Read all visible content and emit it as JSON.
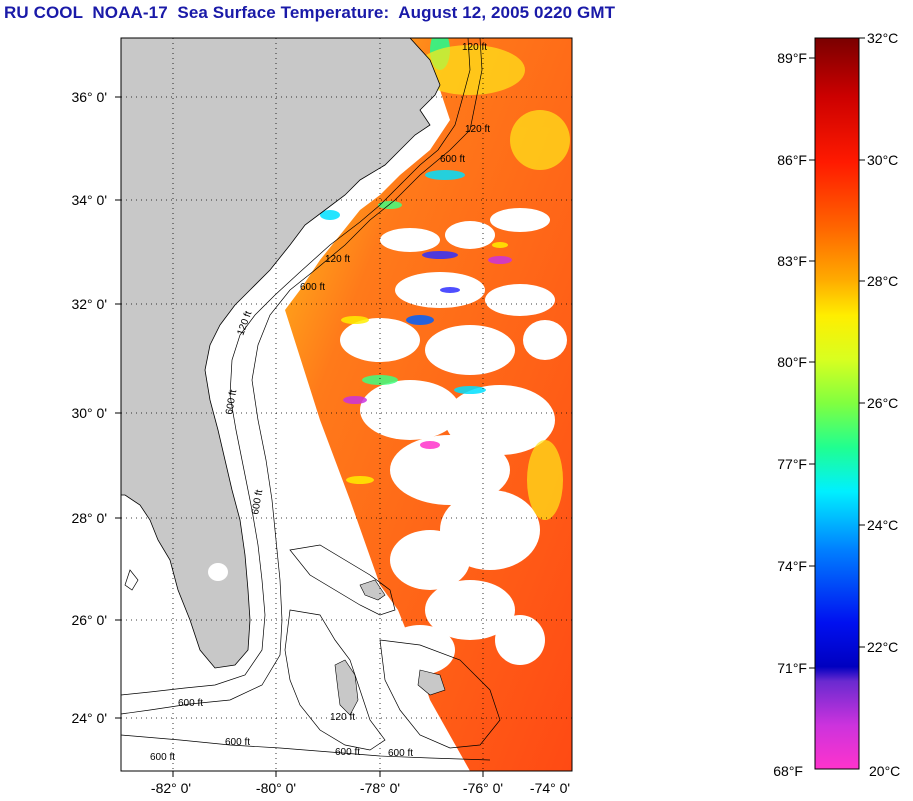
{
  "title": "RU COOL  NOAA-17  Sea Surface Temperature:  August 12, 2005 0220 GMT",
  "map": {
    "lat_labels": [
      "36° 0'",
      "34° 0'",
      "32° 0'",
      "30° 0'",
      "28° 0'",
      "26° 0'",
      "24° 0'"
    ],
    "lon_labels": [
      "-82° 0'",
      "-80° 0'",
      "-78° 0'",
      "-76° 0'",
      "-74° 0'"
    ],
    "isobath_labels": [
      "120 ft",
      "600 ft",
      "120 ft",
      "600 ft",
      "120 ft",
      "600 ft",
      "120 ft",
      "600 ft",
      "600 ft",
      "120 ft",
      "600 ft",
      "600 ft",
      "600 ft",
      "600 ft"
    ],
    "colors": {
      "land": "#c8c8c8",
      "cloud": "#ffffff",
      "frame": "#000000"
    }
  },
  "colorbar": {
    "fahrenheit_labels": [
      "89°F",
      "86°F",
      "83°F",
      "80°F",
      "77°F",
      "74°F",
      "71°F",
      "68°F"
    ],
    "celsius_labels": [
      "32°C",
      "30°C",
      "28°C",
      "26°C",
      "24°C",
      "22°C",
      "20°C"
    ],
    "range_c": [
      20,
      32
    ]
  }
}
